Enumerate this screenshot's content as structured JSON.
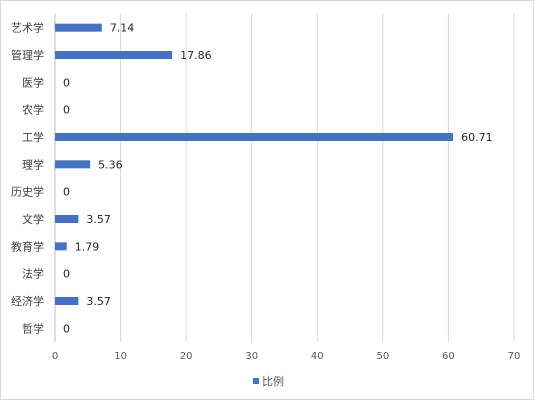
{
  "chart_data": {
    "type": "bar",
    "orientation": "horizontal",
    "categories": [
      "艺术学",
      "管理学",
      "医学",
      "农学",
      "工学",
      "理学",
      "历史学",
      "文学",
      "教育学",
      "法学",
      "经济学",
      "哲学"
    ],
    "series": [
      {
        "name": "比例",
        "values": [
          7.14,
          17.86,
          0,
          0,
          60.71,
          5.36,
          0,
          3.57,
          1.79,
          0,
          3.57,
          0
        ],
        "color": "#4472c4"
      }
    ],
    "data_labels": [
      "7.14",
      "17.86",
      "0",
      "0",
      "60.71",
      "5.36",
      "0",
      "3.57",
      "1.79",
      "0",
      "3.57",
      "0"
    ],
    "x_ticks": [
      "0",
      "10",
      "20",
      "30",
      "40",
      "50",
      "60",
      "70"
    ],
    "xlim": [
      0,
      70
    ],
    "grid": true,
    "legend_position": "bottom",
    "colors": {
      "bar": "#4472c4",
      "grid": "#d9d9d9"
    }
  }
}
